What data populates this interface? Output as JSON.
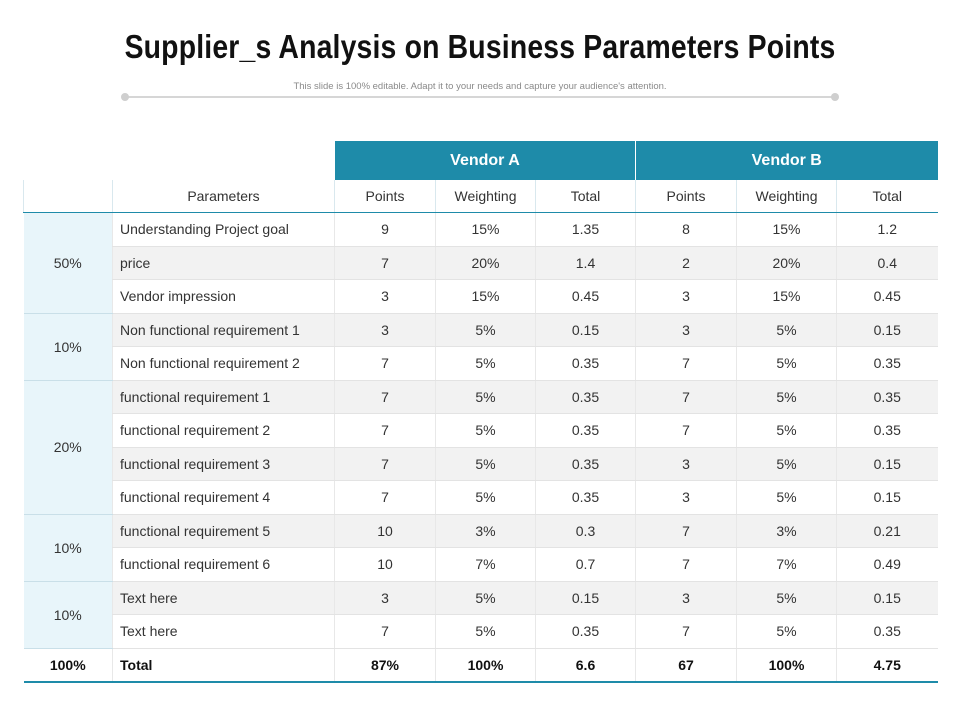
{
  "header": {
    "title": "Supplier_s Analysis on Business Parameters Points",
    "subtitle": "This slide is 100% editable. Adapt it to your needs and capture your audience's attention."
  },
  "table": {
    "vendors": [
      "Vendor A",
      "Vendor B"
    ],
    "columns": [
      "Parameters",
      "Points",
      "Weighting",
      "Total",
      "Points",
      "Weighting",
      "Total"
    ],
    "groups": [
      {
        "weight": "50%",
        "rows": [
          {
            "param": "Understanding  Project goal",
            "a_points": "9",
            "a_weight": "15%",
            "a_total": "1.35",
            "b_points": "8",
            "b_weight": "15%",
            "b_total": "1.2"
          },
          {
            "param": "price",
            "a_points": "7",
            "a_weight": "20%",
            "a_total": "1.4",
            "b_points": "2",
            "b_weight": "20%",
            "b_total": "0.4"
          },
          {
            "param": "Vendor impression",
            "a_points": "3",
            "a_weight": "15%",
            "a_total": "0.45",
            "b_points": "3",
            "b_weight": "15%",
            "b_total": "0.45"
          }
        ]
      },
      {
        "weight": "10%",
        "rows": [
          {
            "param": "Non functional requirement 1",
            "a_points": "3",
            "a_weight": "5%",
            "a_total": "0.15",
            "b_points": "3",
            "b_weight": "5%",
            "b_total": "0.15"
          },
          {
            "param": "Non functional requirement 2",
            "a_points": "7",
            "a_weight": "5%",
            "a_total": "0.35",
            "b_points": "7",
            "b_weight": "5%",
            "b_total": "0.35"
          }
        ]
      },
      {
        "weight": "20%",
        "rows": [
          {
            "param": "functional  requirement 1",
            "a_points": "7",
            "a_weight": "5%",
            "a_total": "0.35",
            "b_points": "7",
            "b_weight": "5%",
            "b_total": "0.35"
          },
          {
            "param": "functional  requirement 2",
            "a_points": "7",
            "a_weight": "5%",
            "a_total": "0.35",
            "b_points": "7",
            "b_weight": "5%",
            "b_total": "0.35"
          },
          {
            "param": "functional  requirement 3",
            "a_points": "7",
            "a_weight": "5%",
            "a_total": "0.35",
            "b_points": "3",
            "b_weight": "5%",
            "b_total": "0.15"
          },
          {
            "param": "functional  requirement 4",
            "a_points": "7",
            "a_weight": "5%",
            "a_total": "0.35",
            "b_points": "3",
            "b_weight": "5%",
            "b_total": "0.15"
          }
        ]
      },
      {
        "weight": "10%",
        "rows": [
          {
            "param": "functional  requirement 5",
            "a_points": "10",
            "a_weight": "3%",
            "a_total": "0.3",
            "b_points": "7",
            "b_weight": "3%",
            "b_total": "0.21"
          },
          {
            "param": "functional  requirement 6",
            "a_points": "10",
            "a_weight": "7%",
            "a_total": "0.7",
            "b_points": "7",
            "b_weight": "7%",
            "b_total": "0.49"
          }
        ]
      },
      {
        "weight": "10%",
        "rows": [
          {
            "param": "Text here",
            "a_points": "3",
            "a_weight": "5%",
            "a_total": "0.15",
            "b_points": "3",
            "b_weight": "5%",
            "b_total": "0.15"
          },
          {
            "param": "Text here",
            "a_points": "7",
            "a_weight": "5%",
            "a_total": "0.35",
            "b_points": "7",
            "b_weight": "5%",
            "b_total": "0.35"
          }
        ]
      }
    ],
    "total": {
      "weight": "100%",
      "param": "Total",
      "a_points": "87%",
      "a_weight": "100%",
      "a_total": "6.6",
      "b_points": "67",
      "b_weight": "100%",
      "b_total": "4.75"
    }
  },
  "colors": {
    "header_teal": "#1e8ba9",
    "group_cell_bg": "#e8f5fa",
    "stripe": "#f2f2f2"
  }
}
